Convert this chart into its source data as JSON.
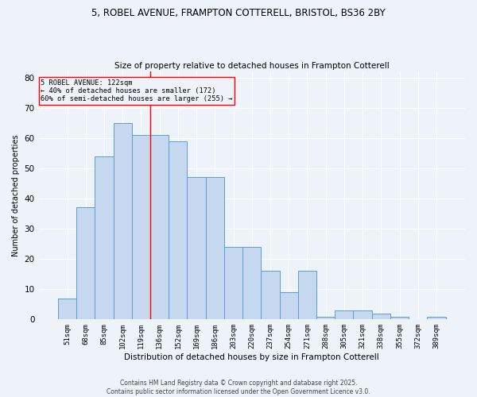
{
  "title1": "5, ROBEL AVENUE, FRAMPTON COTTERELL, BRISTOL, BS36 2BY",
  "title2": "Size of property relative to detached houses in Frampton Cotterell",
  "xlabel": "Distribution of detached houses by size in Frampton Cotterell",
  "ylabel": "Number of detached properties",
  "categories": [
    "51sqm",
    "68sqm",
    "85sqm",
    "102sqm",
    "119sqm",
    "136sqm",
    "152sqm",
    "169sqm",
    "186sqm",
    "203sqm",
    "220sqm",
    "237sqm",
    "254sqm",
    "271sqm",
    "288sqm",
    "305sqm",
    "321sqm",
    "338sqm",
    "355sqm",
    "372sqm",
    "389sqm"
  ],
  "values": [
    7,
    37,
    54,
    65,
    61,
    61,
    59,
    47,
    47,
    24,
    24,
    16,
    9,
    16,
    1,
    3,
    3,
    2,
    1,
    0,
    1
  ],
  "bar_color": "#c5d8f0",
  "bar_edge_color": "#5a9fd4",
  "ylim": [
    0,
    82
  ],
  "yticks": [
    0,
    10,
    20,
    30,
    40,
    50,
    60,
    70,
    80
  ],
  "property_label": "5 ROBEL AVENUE: 122sqm",
  "annotation_line1": "← 40% of detached houses are smaller (172)",
  "annotation_line2": "60% of semi-detached houses are larger (255) →",
  "vline_x": 4.5,
  "background_color": "#eef3fa",
  "grid_color": "#ffffff",
  "footer1": "Contains HM Land Registry data © Crown copyright and database right 2025.",
  "footer2": "Contains public sector information licensed under the Open Government Licence v3.0."
}
